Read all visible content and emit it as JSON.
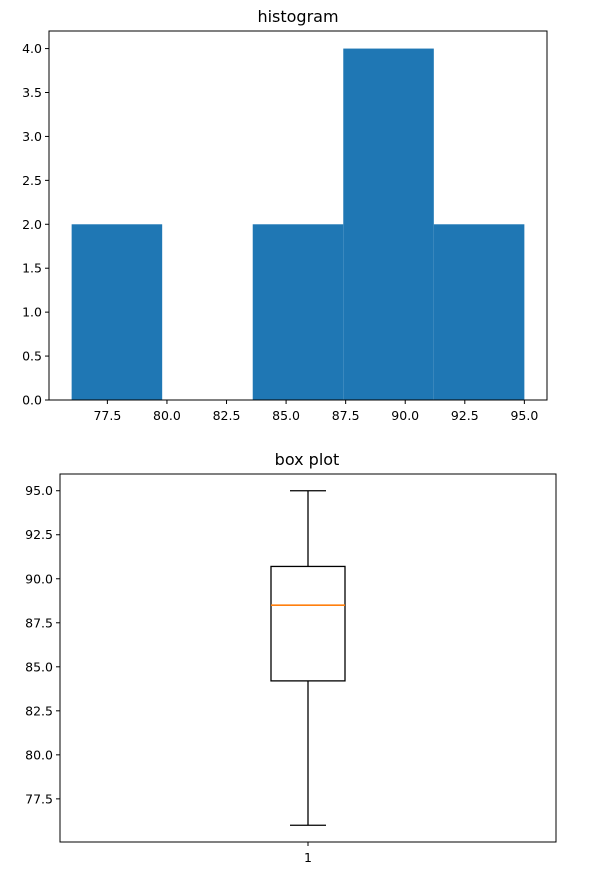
{
  "chart_data": [
    {
      "type": "bar",
      "title": "histogram",
      "xlabel": "",
      "ylabel": "",
      "bin_edges": [
        76.0,
        79.8,
        83.6,
        87.4,
        91.2,
        95.0
      ],
      "counts": [
        2,
        0,
        2,
        4,
        2
      ],
      "color": "#1f77b4",
      "xlim": [
        75.05,
        95.95
      ],
      "ylim": [
        0,
        4.2
      ],
      "x_ticks": [
        77.5,
        80.0,
        82.5,
        85.0,
        87.5,
        90.0,
        92.5,
        95.0
      ],
      "x_tick_labels": [
        "77.5",
        "80.0",
        "82.5",
        "85.0",
        "87.5",
        "90.0",
        "92.5",
        "95.0"
      ],
      "y_ticks": [
        0,
        0.5,
        1.0,
        1.5,
        2.0,
        2.5,
        3.0,
        3.5,
        4.0
      ],
      "y_tick_labels": [
        "0.0",
        "0.5",
        "1.0",
        "1.5",
        "2.0",
        "2.5",
        "3.0",
        "3.5",
        "4.0"
      ],
      "grid": false
    },
    {
      "type": "box",
      "title": "box plot",
      "xlabel": "",
      "ylabel": "",
      "categories": [
        "1"
      ],
      "stats": {
        "whisker_low": 76.0,
        "q1": 84.2,
        "median": 88.5,
        "q3": 90.7,
        "whisker_high": 95.0
      },
      "median_color": "#ff7f0e",
      "ylim": [
        75.05,
        95.95
      ],
      "y_ticks": [
        77.5,
        80.0,
        82.5,
        85.0,
        87.5,
        90.0,
        92.5,
        95.0
      ],
      "y_tick_labels": [
        "77.5",
        "80.0",
        "82.5",
        "85.0",
        "87.5",
        "90.0",
        "92.5",
        "95.0"
      ],
      "grid": false
    }
  ]
}
